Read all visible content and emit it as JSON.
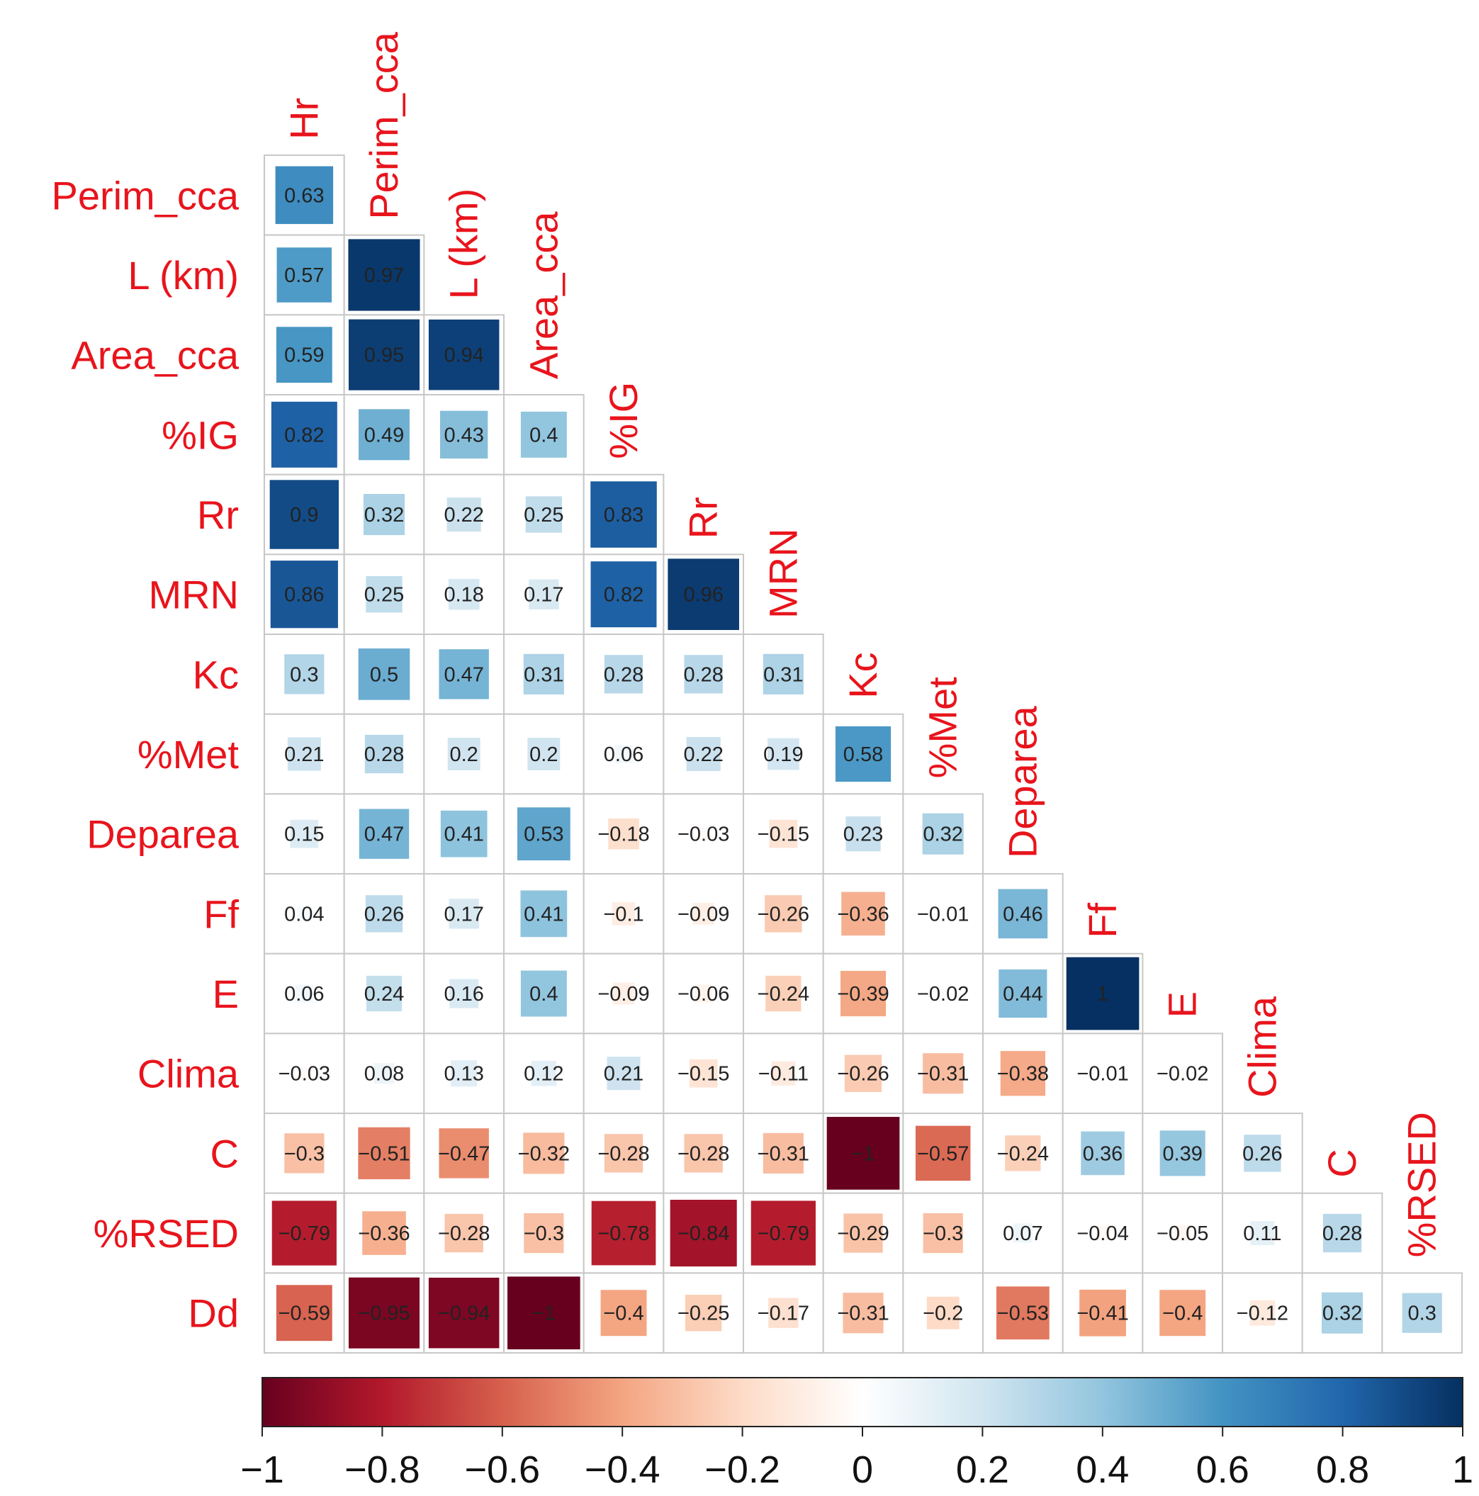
{
  "chart_data": {
    "type": "heatmap",
    "title": "",
    "variables": [
      "Hr",
      "Perim_cca",
      "L (km)",
      "Area_cca",
      "%IG",
      "Rr",
      "MRN",
      "Kc",
      "%Met",
      "Deparea",
      "Ff",
      "E",
      "Clima",
      "C",
      "%RSED",
      "Dd"
    ],
    "row_labels": [
      "Perim_cca",
      "L (km)",
      "Area_cca",
      "%IG",
      "Rr",
      "MRN",
      "Kc",
      "%Met",
      "Deparea",
      "Ff",
      "E",
      "Clima",
      "C",
      "%RSED",
      "Dd"
    ],
    "col_labels": [
      "Hr",
      "Perim_cca",
      "L (km)",
      "Area_cca",
      "%IG",
      "Rr",
      "MRN",
      "Kc",
      "%Met",
      "Deparea",
      "Ff",
      "E",
      "Clima",
      "C",
      "%RSED"
    ],
    "matrix_lower": [
      [
        0.63
      ],
      [
        0.57,
        0.97
      ],
      [
        0.59,
        0.95,
        0.94
      ],
      [
        0.82,
        0.49,
        0.43,
        0.4
      ],
      [
        0.9,
        0.32,
        0.22,
        0.25,
        0.83
      ],
      [
        0.86,
        0.25,
        0.18,
        0.17,
        0.82,
        0.96
      ],
      [
        0.3,
        0.5,
        0.47,
        0.31,
        0.28,
        0.28,
        0.31
      ],
      [
        0.21,
        0.28,
        0.2,
        0.2,
        0.06,
        0.22,
        0.19,
        0.58
      ],
      [
        0.15,
        0.47,
        0.41,
        0.53,
        -0.18,
        -0.03,
        -0.15,
        0.23,
        0.32
      ],
      [
        0.04,
        0.26,
        0.17,
        0.41,
        -0.1,
        -0.09,
        -0.26,
        -0.36,
        -0.01,
        0.46
      ],
      [
        0.06,
        0.24,
        0.16,
        0.4,
        -0.09,
        -0.06,
        -0.24,
        -0.39,
        -0.02,
        0.44,
        1
      ],
      [
        -0.03,
        0.08,
        0.13,
        0.12,
        0.21,
        -0.15,
        -0.11,
        -0.26,
        -0.31,
        -0.38,
        -0.01,
        -0.02
      ],
      [
        -0.3,
        -0.51,
        -0.47,
        -0.32,
        -0.28,
        -0.28,
        -0.31,
        -1,
        -0.57,
        -0.24,
        0.36,
        0.39,
        0.26
      ],
      [
        -0.79,
        -0.36,
        -0.28,
        -0.3,
        -0.78,
        -0.84,
        -0.79,
        -0.29,
        -0.3,
        0.07,
        -0.04,
        -0.05,
        0.11,
        0.28
      ],
      [
        -0.59,
        -0.95,
        -0.94,
        -1,
        -0.4,
        -0.25,
        -0.17,
        -0.31,
        -0.2,
        -0.53,
        -0.41,
        -0.4,
        -0.12,
        0.32,
        0.3
      ]
    ],
    "cell_labels": [
      [
        "0.63"
      ],
      [
        "0.57",
        "0.97"
      ],
      [
        "0.59",
        "0.95",
        "0.94"
      ],
      [
        "0.82",
        "0.49",
        "0.43",
        "0.4"
      ],
      [
        "0.9",
        "0.32",
        "0.22",
        "0.25",
        "0.83"
      ],
      [
        "0.86",
        "0.25",
        "0.18",
        "0.17",
        "0.82",
        "0.96"
      ],
      [
        "0.3",
        "0.5",
        "0.47",
        "0.31",
        "0.28",
        "0.28",
        "0.31"
      ],
      [
        "0.21",
        "0.28",
        "0.2",
        "0.2",
        "0.06",
        "0.22",
        "0.19",
        "0.58"
      ],
      [
        "0.15",
        "0.47",
        "0.41",
        "0.53",
        "−0.18",
        "−0.03",
        "−0.15",
        "0.23",
        "0.32"
      ],
      [
        "0.04",
        "0.26",
        "0.17",
        "0.41",
        "−0.1",
        "−0.09",
        "−0.26",
        "−0.36",
        "−0.01",
        "0.46"
      ],
      [
        "0.06",
        "0.24",
        "0.16",
        "0.4",
        "−0.09",
        "−0.06",
        "−0.24",
        "−0.39",
        "−0.02",
        "0.44",
        "1"
      ],
      [
        "−0.03",
        "0.08",
        "0.13",
        "0.12",
        "0.21",
        "−0.15",
        "−0.11",
        "−0.26",
        "−0.31",
        "−0.38",
        "−0.01",
        "−0.02"
      ],
      [
        "−0.3",
        "−0.51",
        "−0.47",
        "−0.32",
        "−0.28",
        "−0.28",
        "−0.31",
        "−1",
        "−0.57",
        "−0.24",
        "0.36",
        "0.39",
        "0.26"
      ],
      [
        "−0.79",
        "−0.36",
        "−0.28",
        "−0.3",
        "−0.78",
        "−0.84",
        "−0.79",
        "−0.29",
        "−0.3",
        "0.07",
        "−0.04",
        "−0.05",
        "0.11",
        "0.28"
      ],
      [
        "−0.59",
        "−0.95",
        "−0.94",
        "−1",
        "−0.4",
        "−0.25",
        "−0.17",
        "−0.31",
        "−0.2",
        "−0.53",
        "−0.41",
        "−0.4",
        "−0.12",
        "0.32",
        "0.3"
      ]
    ],
    "square_size_encodes": "absolute correlation",
    "colorbar": {
      "range": [
        -1,
        1
      ],
      "ticks": [
        -1,
        -0.8,
        -0.6,
        -0.4,
        -0.2,
        0,
        0.2,
        0.4,
        0.6,
        0.8,
        1
      ],
      "tick_labels": [
        "−1",
        "−0.8",
        "−0.6",
        "−0.4",
        "−0.2",
        "0",
        "0.2",
        "0.4",
        "0.6",
        "0.8",
        "1"
      ],
      "orientation": "horizontal",
      "placement": "bottom"
    },
    "colors": {
      "label": "#e8141c",
      "scale": [
        "#67001f",
        "#b2182b",
        "#d6604d",
        "#f4a582",
        "#fddbc7",
        "#ffffff",
        "#d1e5f0",
        "#92c5de",
        "#4393c3",
        "#2166ac",
        "#053061"
      ],
      "grid": "#c8c8c8"
    },
    "xlabel": "",
    "ylabel": ""
  }
}
